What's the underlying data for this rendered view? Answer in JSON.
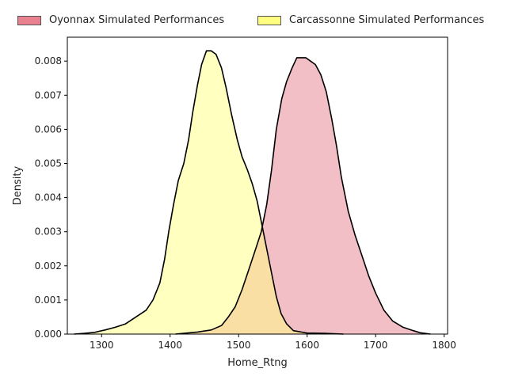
{
  "chart_data": {
    "type": "area",
    "xlabel": "Home_Rtng",
    "ylabel": "Density",
    "xlim": [
      1250,
      1805
    ],
    "ylim": [
      0,
      0.0087
    ],
    "x_ticks": [
      1300,
      1400,
      1500,
      1600,
      1700,
      1800
    ],
    "y_ticks": [
      0.0,
      0.001,
      0.002,
      0.003,
      0.004,
      0.005,
      0.006,
      0.007,
      0.008
    ],
    "grid": false,
    "legend_position": "top",
    "series": [
      {
        "name": "Oyonnax Simulated Performances",
        "color": "#e8808f",
        "points": [
          [
            1408,
            0.0
          ],
          [
            1420,
            2e-05
          ],
          [
            1440,
            6e-05
          ],
          [
            1460,
            0.00012
          ],
          [
            1475,
            0.00025
          ],
          [
            1485,
            0.0005
          ],
          [
            1495,
            0.0008
          ],
          [
            1505,
            0.0013
          ],
          [
            1515,
            0.0019
          ],
          [
            1525,
            0.0025
          ],
          [
            1533,
            0.003
          ],
          [
            1541,
            0.0038
          ],
          [
            1548,
            0.0048
          ],
          [
            1555,
            0.006
          ],
          [
            1563,
            0.0069
          ],
          [
            1570,
            0.0074
          ],
          [
            1578,
            0.0078
          ],
          [
            1585,
            0.0081
          ],
          [
            1592,
            0.0081
          ],
          [
            1598,
            0.0081
          ],
          [
            1605,
            0.008
          ],
          [
            1612,
            0.0079
          ],
          [
            1620,
            0.0076
          ],
          [
            1628,
            0.0071
          ],
          [
            1636,
            0.0063
          ],
          [
            1643,
            0.0055
          ],
          [
            1650,
            0.0046
          ],
          [
            1660,
            0.0036
          ],
          [
            1670,
            0.0029
          ],
          [
            1680,
            0.0023
          ],
          [
            1690,
            0.0017
          ],
          [
            1700,
            0.0012
          ],
          [
            1712,
            0.0007
          ],
          [
            1725,
            0.00038
          ],
          [
            1740,
            0.0002
          ],
          [
            1755,
            0.0001
          ],
          [
            1765,
            4e-05
          ],
          [
            1780,
            0.0
          ]
        ]
      },
      {
        "name": "Carcassonne Simulated Performances",
        "color": "#ffff80",
        "points": [
          [
            1260,
            0.0
          ],
          [
            1275,
            2e-05
          ],
          [
            1290,
            5e-05
          ],
          [
            1305,
            0.00012
          ],
          [
            1320,
            0.0002
          ],
          [
            1335,
            0.0003
          ],
          [
            1350,
            0.0005
          ],
          [
            1365,
            0.0007
          ],
          [
            1375,
            0.001
          ],
          [
            1385,
            0.0015
          ],
          [
            1392,
            0.0022
          ],
          [
            1398,
            0.003
          ],
          [
            1405,
            0.0038
          ],
          [
            1412,
            0.0045
          ],
          [
            1420,
            0.005
          ],
          [
            1427,
            0.0057
          ],
          [
            1433,
            0.0065
          ],
          [
            1440,
            0.0073
          ],
          [
            1446,
            0.0079
          ],
          [
            1453,
            0.0083
          ],
          [
            1460,
            0.0083
          ],
          [
            1467,
            0.0082
          ],
          [
            1475,
            0.0078
          ],
          [
            1482,
            0.0072
          ],
          [
            1490,
            0.0064
          ],
          [
            1498,
            0.0057
          ],
          [
            1505,
            0.0052
          ],
          [
            1513,
            0.0048
          ],
          [
            1520,
            0.0044
          ],
          [
            1527,
            0.0039
          ],
          [
            1533,
            0.0033
          ],
          [
            1540,
            0.0026
          ],
          [
            1548,
            0.0018
          ],
          [
            1555,
            0.0011
          ],
          [
            1562,
            0.0006
          ],
          [
            1570,
            0.0003
          ],
          [
            1580,
            0.0001
          ],
          [
            1600,
            3e-05
          ],
          [
            1625,
            2e-05
          ],
          [
            1653,
            0.0
          ]
        ]
      }
    ]
  }
}
